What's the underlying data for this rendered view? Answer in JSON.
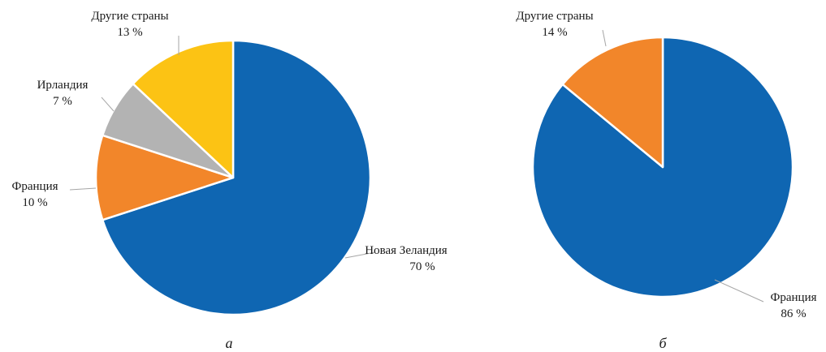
{
  "chart_data": [
    {
      "type": "pie",
      "caption": "а",
      "slices": [
        {
          "label": "Новая Зеландия",
          "value": 70,
          "value_label": "70 %",
          "color": "#0f66b2"
        },
        {
          "label": "Франция",
          "value": 10,
          "value_label": "10 %",
          "color": "#f2862a"
        },
        {
          "label": "Ирландия",
          "value": 7,
          "value_label": "7 %",
          "color": "#b3b3b3"
        },
        {
          "label": "Другие страны",
          "value": 13,
          "value_label": "13 %",
          "color": "#fcc314"
        }
      ]
    },
    {
      "type": "pie",
      "caption": "б",
      "slices": [
        {
          "label": "Франция",
          "value": 86,
          "value_label": "86 %",
          "color": "#0f66b2"
        },
        {
          "label": "Другие страны",
          "value": 14,
          "value_label": "14 %",
          "color": "#f2862a"
        }
      ]
    }
  ]
}
